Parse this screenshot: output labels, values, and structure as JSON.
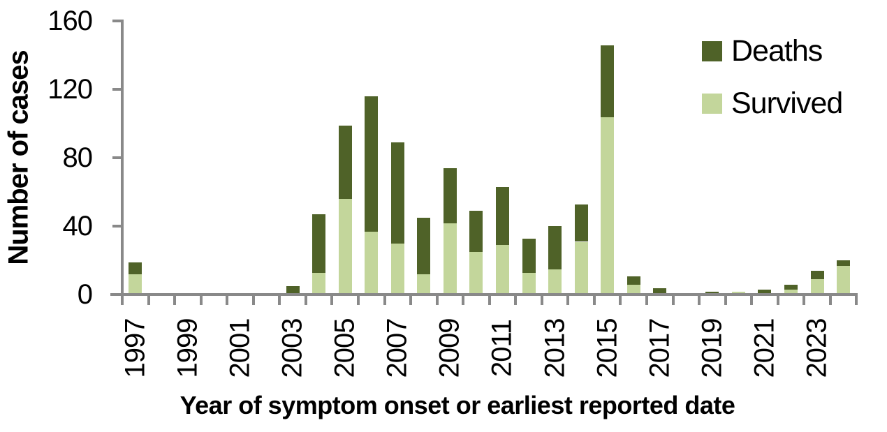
{
  "chart_data": {
    "type": "bar",
    "stacked": true,
    "title": "",
    "xlabel": "Year of symptom onset or earliest reported date",
    "ylabel": "Number of cases",
    "ylim": [
      0,
      160
    ],
    "yticks": [
      0,
      40,
      80,
      120,
      160
    ],
    "x_label_interval": 2,
    "visible_x_tick_labels": [
      "1997",
      "1999",
      "2001",
      "2003",
      "2005",
      "2007",
      "2009",
      "2011",
      "2013",
      "2015",
      "2017",
      "2019",
      "2021",
      "2023"
    ],
    "categories": [
      1997,
      1998,
      1999,
      2000,
      2001,
      2002,
      2003,
      2004,
      2005,
      2006,
      2007,
      2008,
      2009,
      2010,
      2011,
      2012,
      2013,
      2014,
      2015,
      2016,
      2017,
      2018,
      2019,
      2020,
      2021,
      2022,
      2023,
      2024
    ],
    "series": [
      {
        "name": "Survived",
        "color": "#c3d69b",
        "values": [
          11,
          0,
          0,
          0,
          0,
          0,
          0,
          12,
          55,
          36,
          29,
          11,
          41,
          24,
          28,
          12,
          14,
          30,
          103,
          5,
          0,
          0,
          0,
          1,
          0,
          2,
          8,
          16
        ]
      },
      {
        "name": "Deaths",
        "color": "#4f6228",
        "values": [
          7,
          0,
          0,
          0,
          0,
          0,
          4,
          34,
          43,
          79,
          59,
          33,
          32,
          24,
          34,
          20,
          25,
          22,
          42,
          5,
          3,
          0,
          1,
          0,
          2,
          3,
          5,
          3
        ]
      }
    ],
    "legend": {
      "position": "top-right",
      "entries": [
        "Deaths",
        "Survived"
      ]
    },
    "axis_color": "#898989",
    "grid": false
  }
}
